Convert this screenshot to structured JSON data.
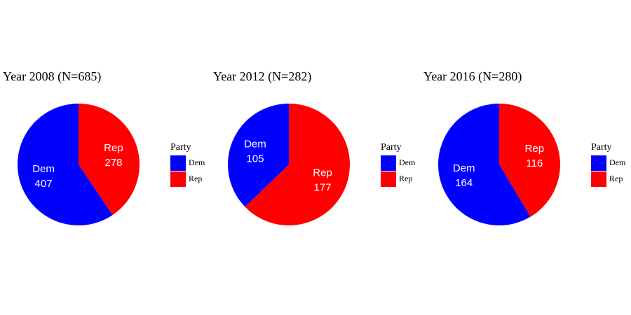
{
  "colors": {
    "Dem": "#0000ff",
    "Rep": "#ff0000"
  },
  "chart_data": [
    {
      "type": "pie",
      "title": "Year 2008 (N=685)",
      "categories": [
        "Dem",
        "Rep"
      ],
      "values": [
        407,
        278
      ],
      "legend": {
        "title": "Party",
        "entries": [
          "Dem",
          "Rep"
        ],
        "placement": "right"
      }
    },
    {
      "type": "pie",
      "title": "Year 2012 (N=282)",
      "categories": [
        "Dem",
        "Rep"
      ],
      "values": [
        105,
        177
      ],
      "legend": {
        "title": "Party",
        "entries": [
          "Dem",
          "Rep"
        ],
        "placement": "right"
      }
    },
    {
      "type": "pie",
      "title": "Year 2016 (N=280)",
      "categories": [
        "Dem",
        "Rep"
      ],
      "values": [
        164,
        116
      ],
      "legend": {
        "title": "Party",
        "entries": [
          "Dem",
          "Rep"
        ],
        "placement": "right"
      }
    }
  ]
}
